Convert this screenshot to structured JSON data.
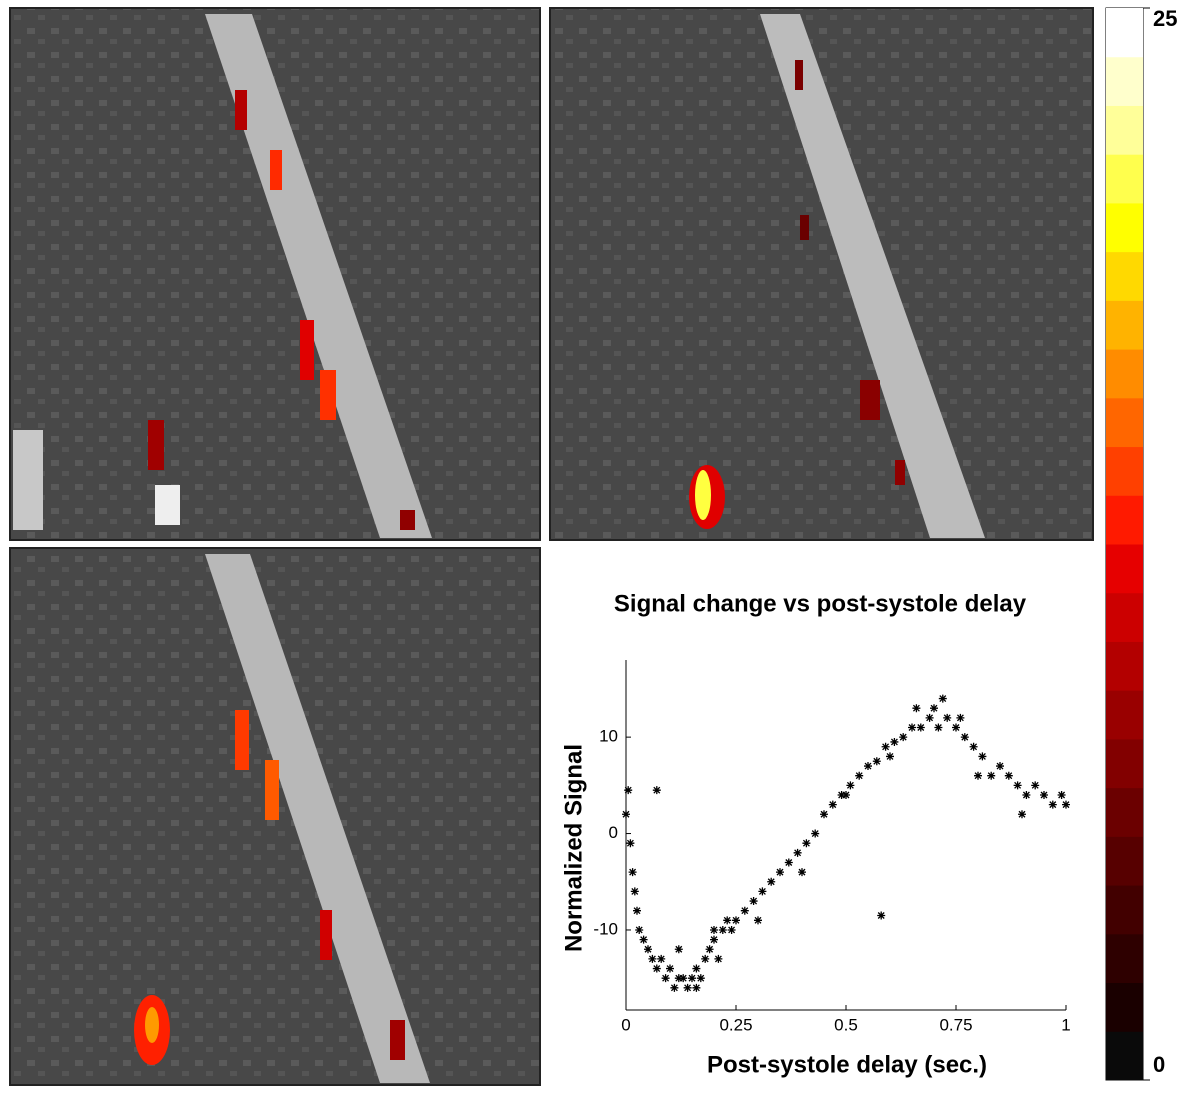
{
  "chart_data": {
    "type": "scatter",
    "title": "Signal change vs post-systole delay",
    "x_label": "Post-systole delay (sec.)",
    "y_label": "Normalized Signal",
    "marker_color": "#000000",
    "xlim": [
      0,
      1
    ],
    "xticks": [
      0,
      0.25,
      0.5,
      0.75,
      1
    ],
    "ylim": [
      -18.3,
      18
    ],
    "yticks": [
      -10,
      0,
      10
    ],
    "x": [
      0.0,
      0.005,
      0.01,
      0.015,
      0.02,
      0.025,
      0.03,
      0.04,
      0.05,
      0.06,
      0.07,
      0.07,
      0.08,
      0.09,
      0.1,
      0.11,
      0.12,
      0.13,
      0.14,
      0.15,
      0.16,
      0.17,
      0.18,
      0.19,
      0.2,
      0.21,
      0.22,
      0.23,
      0.24,
      0.25,
      0.27,
      0.29,
      0.31,
      0.33,
      0.35,
      0.37,
      0.39,
      0.41,
      0.43,
      0.45,
      0.47,
      0.49,
      0.51,
      0.53,
      0.55,
      0.57,
      0.58,
      0.59,
      0.61,
      0.63,
      0.65,
      0.67,
      0.69,
      0.71,
      0.73,
      0.75,
      0.77,
      0.79,
      0.81,
      0.83,
      0.85,
      0.87,
      0.89,
      0.91,
      0.93,
      0.95,
      0.97,
      0.99,
      1.0,
      0.12,
      0.16,
      0.2,
      0.3,
      0.4,
      0.5,
      0.6,
      0.7,
      0.8,
      0.9,
      0.66,
      0.72,
      0.76
    ],
    "values": [
      2,
      4.5,
      -1,
      -4,
      -6,
      -8,
      -10,
      -11,
      -12,
      -13,
      -14,
      4.5,
      -13,
      -15,
      -14,
      -16,
      -15,
      -15,
      -16,
      -15,
      -14,
      -15,
      -13,
      -12,
      -11,
      -13,
      -10,
      -9,
      -10,
      -9,
      -8,
      -7,
      -6,
      -5,
      -4,
      -3,
      -2,
      -1,
      0,
      2,
      3,
      4,
      5,
      6,
      7,
      7.5,
      -8.5,
      9,
      9.5,
      10,
      11,
      11,
      12,
      11,
      12,
      11,
      10,
      9,
      8,
      6,
      7,
      6,
      5,
      4,
      5,
      4,
      3,
      4,
      3,
      -12,
      -16,
      -10,
      -9,
      -4,
      4,
      8,
      13,
      6,
      2,
      13,
      14,
      12
    ]
  },
  "colorbar": {
    "colors": [
      "#0a0a0a",
      "#1a0000",
      "#2e0000",
      "#420000",
      "#570000",
      "#6b0000",
      "#820000",
      "#990000",
      "#b30000",
      "#cc0000",
      "#e60000",
      "#ff1a00",
      "#ff4000",
      "#ff6600",
      "#ff8c00",
      "#ffb300",
      "#ffd900",
      "#ffff00",
      "#ffff4d",
      "#ffff99",
      "#ffffcc",
      "#ffffff"
    ],
    "ticks": [
      0,
      25
    ]
  }
}
